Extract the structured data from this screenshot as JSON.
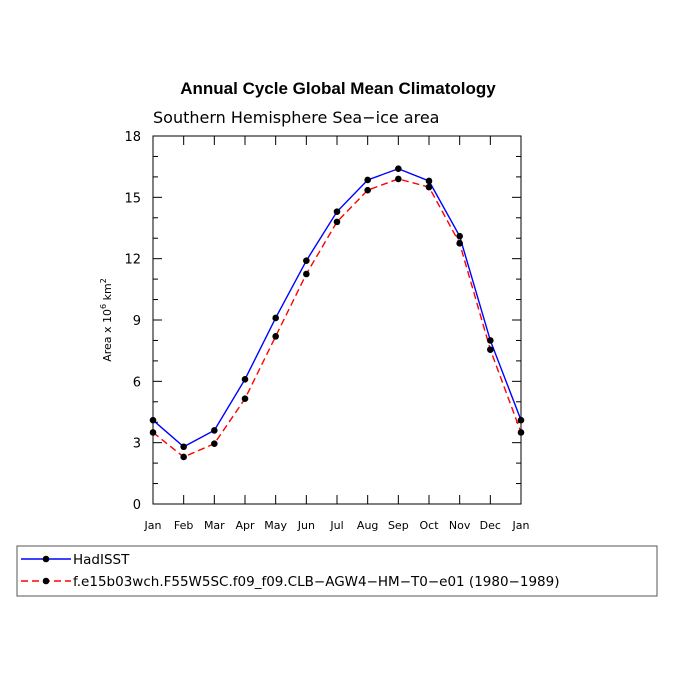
{
  "chart_data": {
    "type": "line",
    "title": "Annual Cycle Global Mean Climatology",
    "subtitle": "Southern Hemisphere Sea−ice area",
    "ylabel_prefix": "Area x 10",
    "ylabel_exp1": "6",
    "ylabel_unit": " km",
    "ylabel_exp2": "2",
    "xlabel": "",
    "categories": [
      "Jan",
      "Feb",
      "Mar",
      "Apr",
      "May",
      "Jun",
      "Jul",
      "Aug",
      "Sep",
      "Oct",
      "Nov",
      "Dec",
      "Jan"
    ],
    "yticks": [
      "0",
      "3",
      "6",
      "9",
      "12",
      "15",
      "18"
    ],
    "ylim": [
      0,
      18
    ],
    "grid": false,
    "legend_position": "bottom",
    "series": [
      {
        "name": "HadISST",
        "color": "#0000ff",
        "style": "solid",
        "values": [
          4.1,
          2.8,
          3.6,
          6.1,
          9.1,
          11.9,
          14.3,
          15.85,
          16.4,
          15.8,
          13.1,
          8.0,
          4.1
        ]
      },
      {
        "name": "f.e15b03wch.F55W5SC.f09_f09.CLB−AGW4−HM−T0−e01 (1980−1989)",
        "color": "#ff0000",
        "style": "dashed",
        "values": [
          3.5,
          2.3,
          2.95,
          5.15,
          8.2,
          11.25,
          13.8,
          15.35,
          15.9,
          15.5,
          12.75,
          7.55,
          3.5
        ]
      }
    ]
  }
}
